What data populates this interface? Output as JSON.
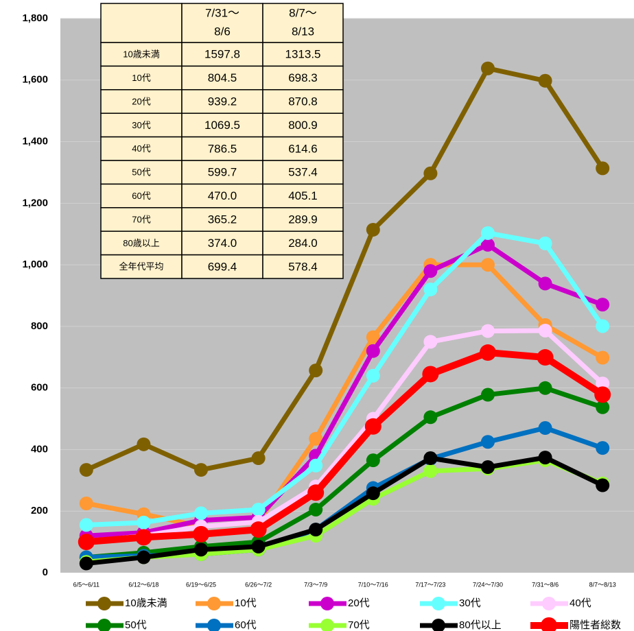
{
  "chart_data": {
    "type": "line",
    "categories": [
      "6/5～6/11",
      "6/12～6/18",
      "6/19～6/25",
      "6/26～7/2",
      "7/3～7/9",
      "7/10～7/16",
      "7/17～7/23",
      "7/24～7/30",
      "7/31～8/6",
      "8/7～8/13"
    ],
    "ylim": [
      0,
      1800
    ],
    "yticks": [
      0,
      200,
      400,
      600,
      800,
      {
        "value": 1000,
        "label": "1,000"
      },
      {
        "value": 1200,
        "label": "1,200"
      },
      {
        "value": 1400,
        "label": "1,400"
      },
      {
        "value": 1600,
        "label": "1,600"
      },
      {
        "value": 1800,
        "label": "1,800"
      }
    ],
    "grid": true,
    "series": [
      {
        "name": "10歳未満",
        "color": "#7f6000",
        "values": [
          334,
          417,
          334,
          372,
          657,
          1114,
          1297,
          1638,
          1597.8,
          1313.5
        ]
      },
      {
        "name": "10代",
        "color": "#ff9933",
        "values": [
          225,
          190,
          150,
          165,
          435,
          765,
          1000,
          1000,
          804.5,
          698.3
        ]
      },
      {
        "name": "20代",
        "color": "#cc00cc",
        "values": [
          120,
          130,
          170,
          180,
          380,
          720,
          980,
          1065,
          939.2,
          870.8
        ]
      },
      {
        "name": "30代",
        "color": "#66ffff",
        "values": [
          155,
          163,
          193,
          205,
          348,
          640,
          920,
          1103,
          1069.5,
          800.9
        ]
      },
      {
        "name": "40代",
        "color": "#ffccff",
        "values": [
          100,
          120,
          150,
          165,
          280,
          500,
          750,
          785,
          786.5,
          614.6
        ]
      },
      {
        "name": "50代",
        "color": "#008000",
        "values": [
          50,
          65,
          85,
          100,
          205,
          365,
          505,
          578,
          599.7,
          537.4
        ]
      },
      {
        "name": "60代",
        "color": "#0070c0",
        "values": [
          50,
          55,
          60,
          75,
          140,
          275,
          370,
          425,
          470.0,
          405.1
        ]
      },
      {
        "name": "70代",
        "color": "#99ff33",
        "values": [
          35,
          50,
          60,
          75,
          120,
          240,
          330,
          338,
          365.2,
          289.9
        ]
      },
      {
        "name": "80代以上",
        "color": "#000000",
        "values": [
          30,
          50,
          75,
          85,
          140,
          258,
          372,
          343,
          374.0,
          284.0
        ]
      },
      {
        "name": "陽性者総数",
        "color": "#ff0000",
        "values": [
          100,
          115,
          125,
          140,
          260,
          475,
          645,
          715,
          699.4,
          578.4
        ]
      }
    ]
  },
  "table": {
    "header": [
      [
        "7/31～",
        "8/6"
      ],
      [
        "8/7～",
        "8/13"
      ]
    ],
    "rows": [
      [
        "10歳未満",
        "1597.8",
        "1313.5"
      ],
      [
        "10代",
        "804.5",
        "698.3"
      ],
      [
        "20代",
        "939.2",
        "870.8"
      ],
      [
        "30代",
        "1069.5",
        "800.9"
      ],
      [
        "40代",
        "786.5",
        "614.6"
      ],
      [
        "50代",
        "599.7",
        "537.4"
      ],
      [
        "60代",
        "470.0",
        "405.1"
      ],
      [
        "70代",
        "365.2",
        "289.9"
      ],
      [
        "80歳以上",
        "374.0",
        "284.0"
      ],
      [
        "全年代平均",
        "699.4",
        "578.4"
      ]
    ]
  }
}
